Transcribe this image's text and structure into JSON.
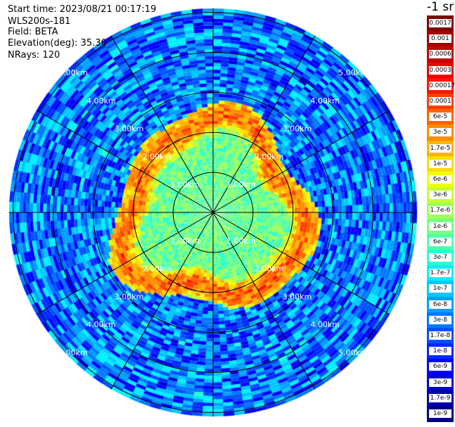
{
  "header": {
    "start_time": "Start time: 2023/08/21 00:17:19",
    "instrument": "WLS200s-181",
    "field": "Field: BETA",
    "elevation": "Elevation(deg): 35.30",
    "nrays": "NRays: 120"
  },
  "colorbar": {
    "unit": "-1 sr",
    "labels": [
      "0.0017",
      "0.001",
      "0.0006",
      "0.0003",
      "0.00017",
      "0.0001",
      "6e-5",
      "3e-5",
      "1.7e-5",
      "1e-5",
      "6e-6",
      "3e-6",
      "1.7e-6",
      "1e-6",
      "6e-7",
      "3e-7",
      "1.7e-7",
      "1e-7",
      "6e-8",
      "3e-8",
      "1.7e-8",
      "1e-8",
      "6e-9",
      "3e-9",
      "1.7e-9",
      "1e-9"
    ],
    "colors": [
      "#800000",
      "#a30000",
      "#c80000",
      "#ee0000",
      "#ff1400",
      "#ff3c00",
      "#ff6400",
      "#ff8c00",
      "#ffb400",
      "#ffdc00",
      "#f0ff0c",
      "#c8ff32",
      "#a0ff5a",
      "#78ff82",
      "#50ffaa",
      "#28ffd2",
      "#00f0ff",
      "#00c8ff",
      "#00a0ff",
      "#0078ff",
      "#0050ff",
      "#0028ff",
      "#0000ff",
      "#0000d8",
      "#0000b0",
      "#000088"
    ]
  },
  "range_labels": [
    "1.00km",
    "2.00km",
    "3.00km",
    "4.00km",
    "5.00km"
  ],
  "chart_data": {
    "type": "heatmap",
    "projection": "polar (PPI scan)",
    "field": "BETA",
    "elevation_deg": 35.3,
    "nrays": 120,
    "range_rings_km": [
      1,
      2,
      3,
      4,
      5
    ],
    "max_range_km": 5.1,
    "azimuth_spokes_deg": [
      0,
      30,
      60,
      90,
      120,
      150,
      180,
      210,
      240,
      270,
      300,
      330
    ],
    "scale": "log",
    "value_range": [
      1e-09,
      0.0017
    ],
    "regions": [
      {
        "description": "inner core",
        "range_km": [
          0,
          1.7
        ],
        "typical_value": 1e-06
      },
      {
        "description": "strong return ring",
        "range_km": [
          1.8,
          2.5
        ],
        "typical_value": 6e-06
      },
      {
        "description": "outer field",
        "range_km": [
          2.5,
          5.1
        ],
        "typical_value": 3e-08
      }
    ]
  }
}
